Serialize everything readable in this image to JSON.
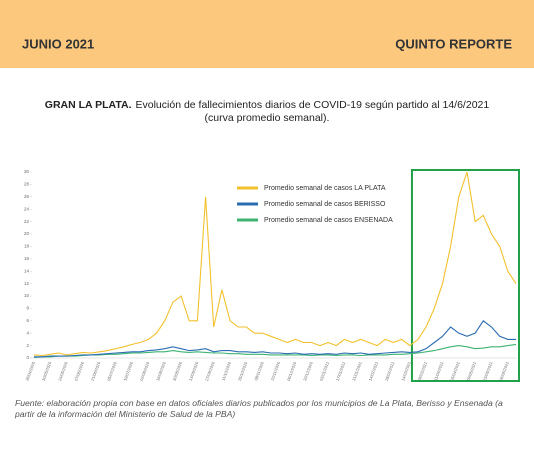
{
  "header": {
    "left": "JUNIO 2021",
    "right": "QUINTO REPORTE"
  },
  "chart_data": {
    "type": "line",
    "title_prefix": "GRAN LA PLATA.",
    "title": "Evolución de fallecimientos diarios de COVID-19 según partido al 14/6/2021",
    "subtitle": "(curva promedio semanal).",
    "categories": [
      "26/04/2020",
      null,
      "10/05/2020",
      null,
      "24/05/2020",
      null,
      "07/06/2020",
      null,
      "21/06/2020",
      null,
      "05/07/2020",
      null,
      "19/07/2020",
      null,
      "02/08/2020",
      null,
      "16/08/2020",
      null,
      "30/08/2020",
      null,
      "13/09/2020",
      null,
      "27/09/2020",
      null,
      "11/10/2020",
      null,
      "25/10/2020",
      null,
      "08/11/2020",
      null,
      "22/11/2020",
      null,
      "06/12/2020",
      null,
      "20/12/2020",
      null,
      "03/01/2021",
      null,
      "17/01/2021",
      null,
      "31/01/2021",
      null,
      "14/02/2021",
      null,
      "28/02/2021",
      null,
      "14/03/2021",
      null,
      "28/03/2021",
      null,
      "11/04/2021",
      null,
      "25/04/2021",
      null,
      "09/05/2021",
      null,
      "23/05/2021",
      null,
      "06/06/2021",
      null
    ],
    "series": [
      {
        "name": "Promedio semanal de casos LA PLATA",
        "color": "#f2c12e",
        "values": [
          0.5,
          0.4,
          0.6,
          0.8,
          0.5,
          0.7,
          0.9,
          0.8,
          1,
          1.2,
          1.5,
          1.8,
          2.2,
          2.5,
          3,
          4,
          6,
          9,
          10,
          6,
          6,
          26,
          5,
          11,
          6,
          5,
          5,
          4,
          4,
          3.5,
          3,
          2.5,
          3,
          2.5,
          2.5,
          2,
          2.5,
          2,
          3,
          2.5,
          3,
          2.5,
          2,
          3,
          2.5,
          3,
          2,
          3,
          5,
          8,
          12,
          18,
          26,
          30,
          22,
          23,
          20,
          18,
          14,
          12
        ]
      },
      {
        "name": "Promedio semanal de casos BERISSO",
        "color": "#2b6cb0",
        "values": [
          0.2,
          0.2,
          0.3,
          0.3,
          0.3,
          0.4,
          0.5,
          0.5,
          0.6,
          0.7,
          0.8,
          0.9,
          1,
          1,
          1.2,
          1.3,
          1.5,
          1.8,
          1.5,
          1.2,
          1.3,
          1.5,
          1,
          1.2,
          1.2,
          1,
          1,
          0.9,
          1,
          0.8,
          0.8,
          0.7,
          0.8,
          0.6,
          0.7,
          0.6,
          0.7,
          0.6,
          0.8,
          0.7,
          0.8,
          0.6,
          0.7,
          0.8,
          0.9,
          1,
          0.9,
          1,
          1.5,
          2.5,
          3.5,
          5,
          4,
          3.5,
          4,
          6,
          5,
          3.5,
          3,
          3
        ]
      },
      {
        "name": "Promedio semanal de casos ENSENADA",
        "color": "#3cb371",
        "values": [
          0.1,
          0.2,
          0.2,
          0.3,
          0.3,
          0.3,
          0.4,
          0.5,
          0.5,
          0.6,
          0.6,
          0.7,
          0.8,
          0.8,
          0.9,
          1,
          1,
          1.2,
          1,
          0.9,
          1,
          0.9,
          0.8,
          0.8,
          0.7,
          0.7,
          0.6,
          0.6,
          0.6,
          0.5,
          0.5,
          0.5,
          0.5,
          0.5,
          0.4,
          0.5,
          0.5,
          0.4,
          0.5,
          0.5,
          0.4,
          0.5,
          0.5,
          0.5,
          0.6,
          0.6,
          0.7,
          0.8,
          1,
          1.2,
          1.5,
          1.8,
          2,
          1.8,
          1.5,
          1.6,
          1.8,
          1.8,
          2,
          2.2
        ]
      }
    ],
    "ylim": [
      0,
      30
    ],
    "yticks": [
      0,
      2,
      4,
      6,
      8,
      10,
      12,
      14,
      16,
      18,
      20,
      22,
      24,
      26,
      28,
      30
    ],
    "grid": false
  },
  "footer": "Fuente: elaboración propia con base en datos oficiales diarios publicados por los municipios de La Plata, Berisso y Ensenada (a partir de la información del Ministerio de Salud de la PBA)"
}
